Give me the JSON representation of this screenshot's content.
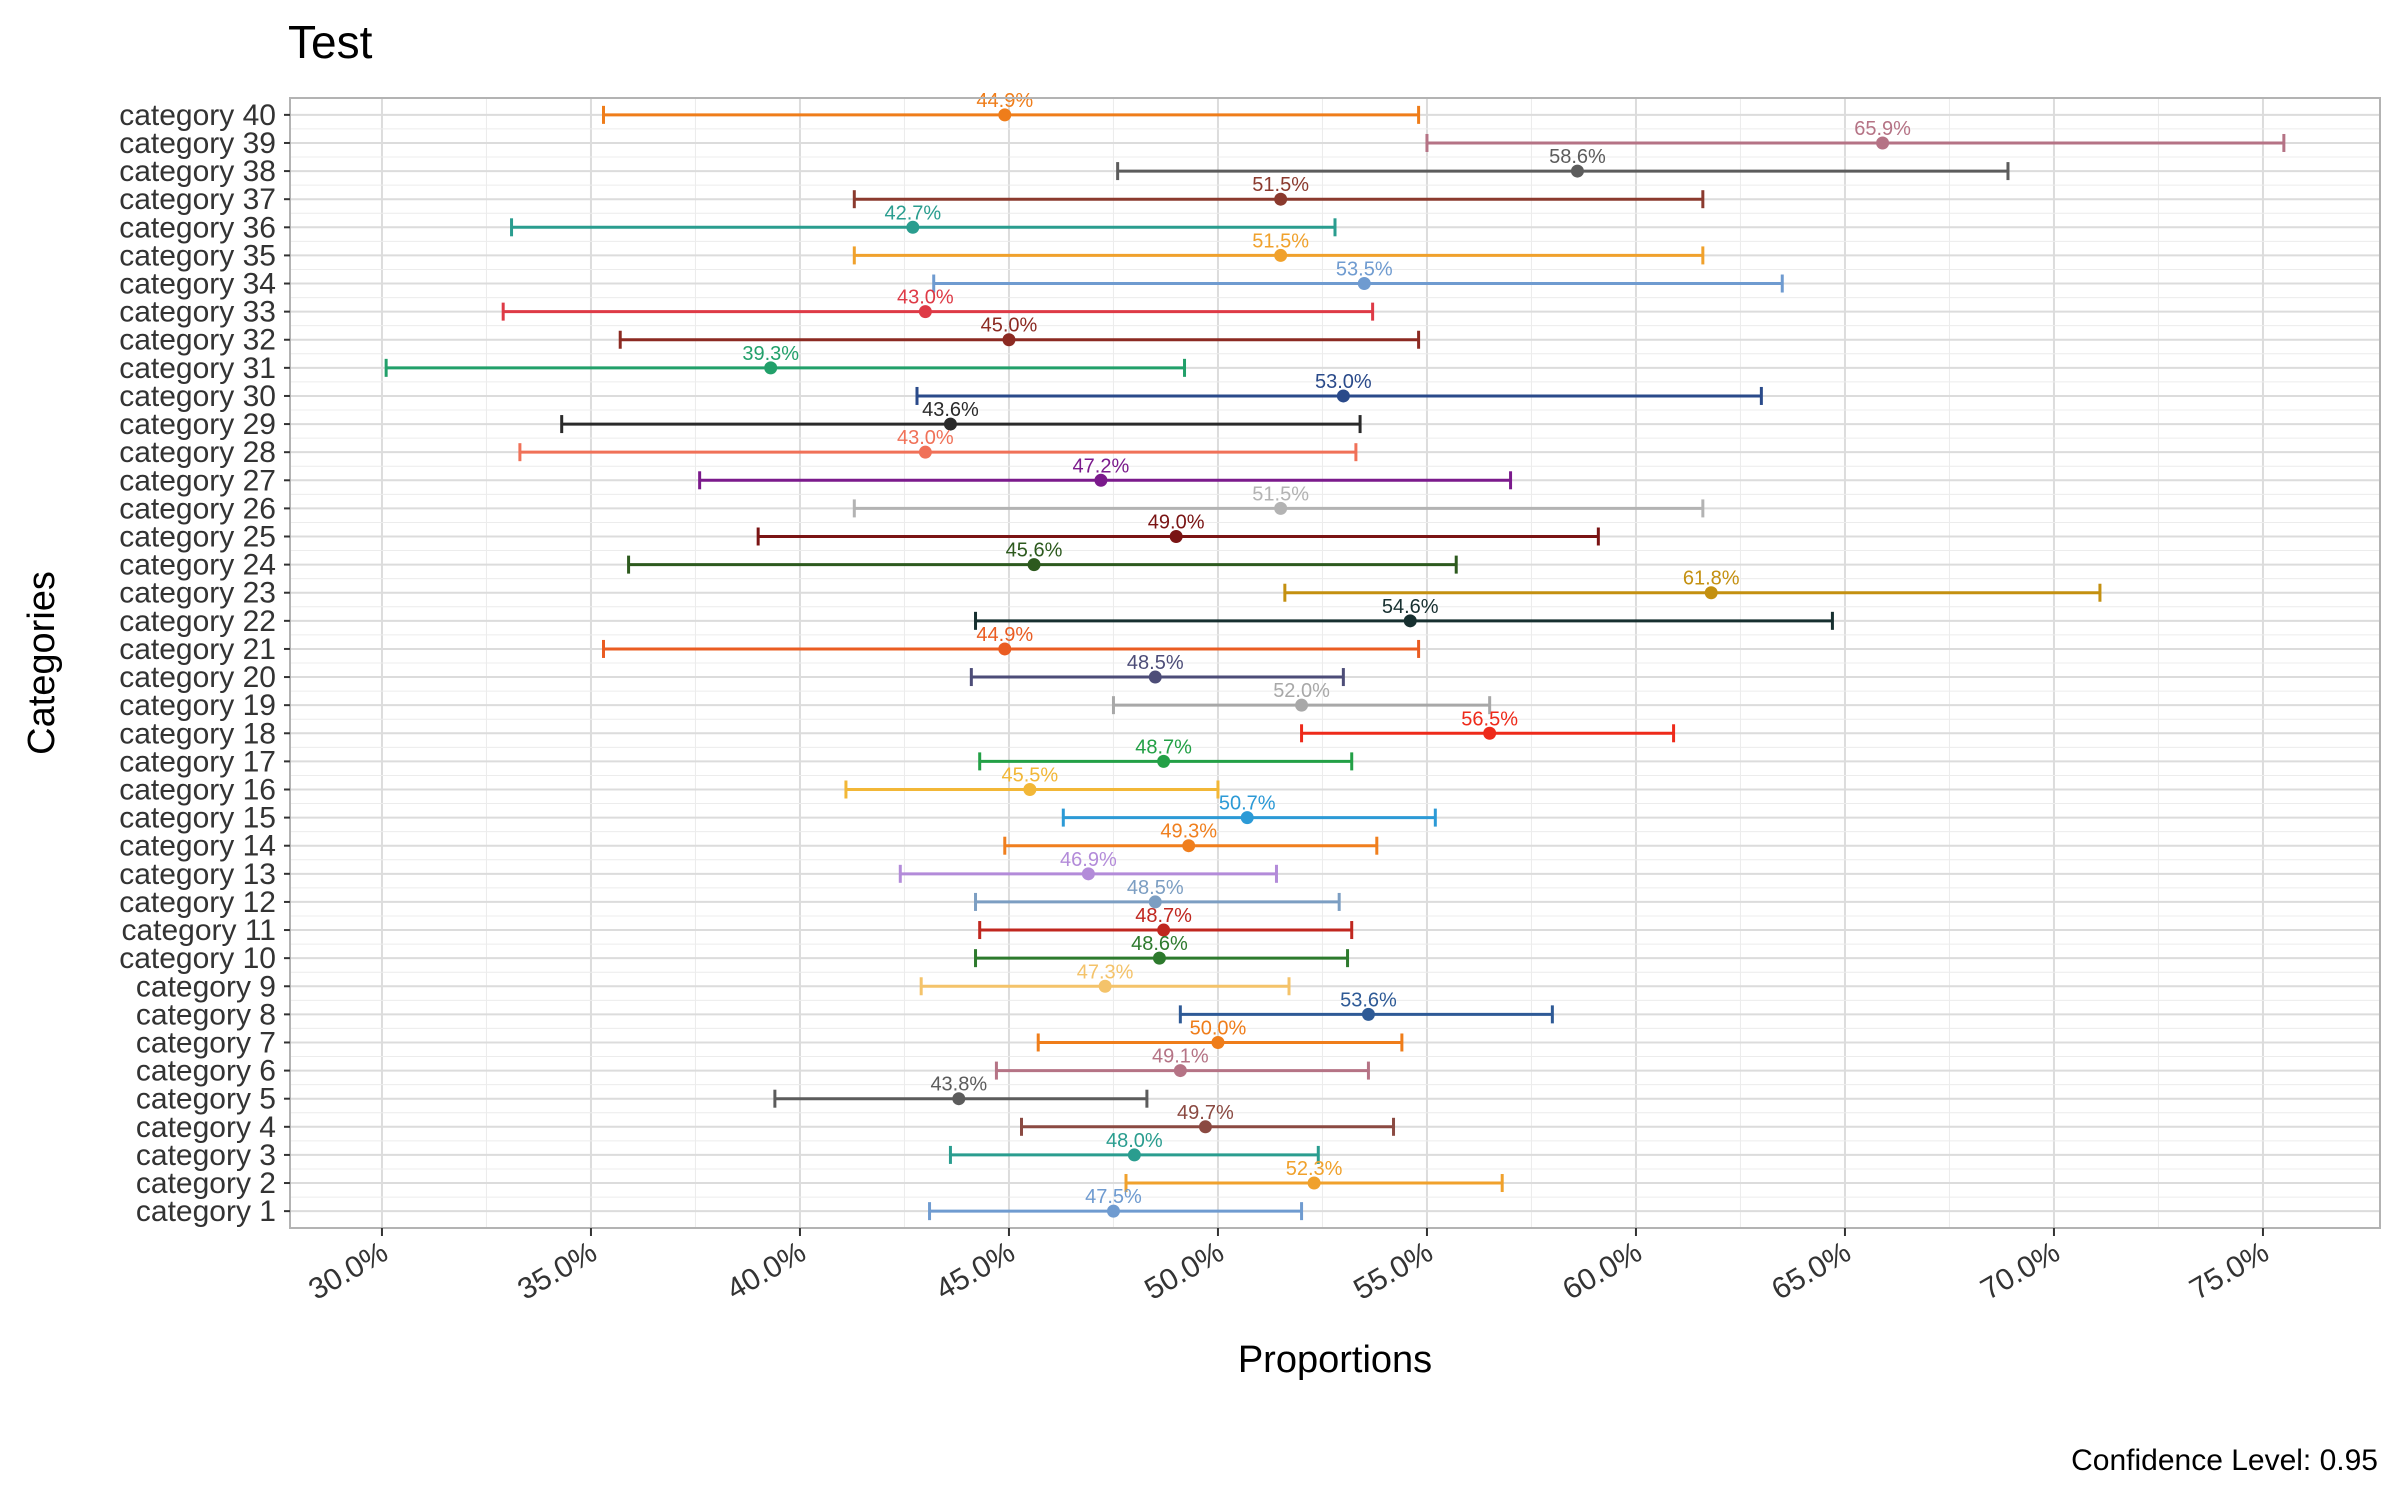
{
  "chart_data": {
    "type": "dot-interval",
    "title": "Test",
    "xlabel": "Proportions",
    "ylabel": "Categories",
    "caption": "Confidence Level: 0.95",
    "xlim": [
      0.278,
      0.778
    ],
    "x_ticks": [
      0.3,
      0.35,
      0.4,
      0.45,
      0.5,
      0.55,
      0.6,
      0.65,
      0.7,
      0.75
    ],
    "x_tick_labels": [
      "30.0%",
      "35.0%",
      "40.0%",
      "45.0%",
      "50.0%",
      "55.0%",
      "60.0%",
      "65.0%",
      "70.0%",
      "75.0%"
    ],
    "grid": true,
    "legend": "none",
    "points": [
      {
        "category": "category 1",
        "value": 0.475,
        "lower": 0.431,
        "upper": 0.52,
        "label": "47.5%",
        "color": "#6f9bd0"
      },
      {
        "category": "category 2",
        "value": 0.523,
        "lower": 0.478,
        "upper": 0.568,
        "label": "52.3%",
        "color": "#f0a12c"
      },
      {
        "category": "category 3",
        "value": 0.48,
        "lower": 0.436,
        "upper": 0.524,
        "label": "48.0%",
        "color": "#2a9d8f"
      },
      {
        "category": "category 4",
        "value": 0.497,
        "lower": 0.453,
        "upper": 0.542,
        "label": "49.7%",
        "color": "#8b4a42"
      },
      {
        "category": "category 5",
        "value": 0.438,
        "lower": 0.394,
        "upper": 0.483,
        "label": "43.8%",
        "color": "#5c5c5c"
      },
      {
        "category": "category 6",
        "value": 0.491,
        "lower": 0.447,
        "upper": 0.536,
        "label": "49.1%",
        "color": "#b57385"
      },
      {
        "category": "category 7",
        "value": 0.5,
        "lower": 0.457,
        "upper": 0.544,
        "label": "50.0%",
        "color": "#ef7d1a"
      },
      {
        "category": "category 8",
        "value": 0.536,
        "lower": 0.491,
        "upper": 0.58,
        "label": "53.6%",
        "color": "#2e5a96"
      },
      {
        "category": "category 9",
        "value": 0.473,
        "lower": 0.429,
        "upper": 0.517,
        "label": "47.3%",
        "color": "#f4c36a"
      },
      {
        "category": "category 10",
        "value": 0.486,
        "lower": 0.442,
        "upper": 0.531,
        "label": "48.6%",
        "color": "#2d7a2d"
      },
      {
        "category": "category 11",
        "value": 0.487,
        "lower": 0.443,
        "upper": 0.532,
        "label": "48.7%",
        "color": "#c0271f"
      },
      {
        "category": "category 12",
        "value": 0.485,
        "lower": 0.442,
        "upper": 0.529,
        "label": "48.5%",
        "color": "#7c9ec2"
      },
      {
        "category": "category 13",
        "value": 0.469,
        "lower": 0.424,
        "upper": 0.514,
        "label": "46.9%",
        "color": "#b38bd9"
      },
      {
        "category": "category 14",
        "value": 0.493,
        "lower": 0.449,
        "upper": 0.538,
        "label": "49.3%",
        "color": "#f07f1e"
      },
      {
        "category": "category 15",
        "value": 0.507,
        "lower": 0.463,
        "upper": 0.552,
        "label": "50.7%",
        "color": "#2c9ad6"
      },
      {
        "category": "category 16",
        "value": 0.455,
        "lower": 0.411,
        "upper": 0.5,
        "label": "45.5%",
        "color": "#f2b737"
      },
      {
        "category": "category 17",
        "value": 0.487,
        "lower": 0.443,
        "upper": 0.532,
        "label": "48.7%",
        "color": "#23a046"
      },
      {
        "category": "category 18",
        "value": 0.565,
        "lower": 0.52,
        "upper": 0.609,
        "label": "56.5%",
        "color": "#ee2a1a"
      },
      {
        "category": "category 19",
        "value": 0.52,
        "lower": 0.475,
        "upper": 0.565,
        "label": "52.0%",
        "color": "#a8a8a8"
      },
      {
        "category": "category 20",
        "value": 0.485,
        "lower": 0.441,
        "upper": 0.53,
        "label": "48.5%",
        "color": "#4d4d78"
      },
      {
        "category": "category 21",
        "value": 0.449,
        "lower": 0.353,
        "upper": 0.548,
        "label": "44.9%",
        "color": "#ea5c22"
      },
      {
        "category": "category 22",
        "value": 0.546,
        "lower": 0.442,
        "upper": 0.647,
        "label": "54.6%",
        "color": "#173030"
      },
      {
        "category": "category 23",
        "value": 0.618,
        "lower": 0.516,
        "upper": 0.711,
        "label": "61.8%",
        "color": "#c49010"
      },
      {
        "category": "category 24",
        "value": 0.456,
        "lower": 0.359,
        "upper": 0.557,
        "label": "45.6%",
        "color": "#2d5a1e"
      },
      {
        "category": "category 25",
        "value": 0.49,
        "lower": 0.39,
        "upper": 0.591,
        "label": "49.0%",
        "color": "#7a1414"
      },
      {
        "category": "category 26",
        "value": 0.515,
        "lower": 0.413,
        "upper": 0.616,
        "label": "51.5%",
        "color": "#b3b3b3"
      },
      {
        "category": "category 27",
        "value": 0.472,
        "lower": 0.376,
        "upper": 0.57,
        "label": "47.2%",
        "color": "#7b1a8c"
      },
      {
        "category": "category 28",
        "value": 0.43,
        "lower": 0.333,
        "upper": 0.533,
        "label": "43.0%",
        "color": "#f07158"
      },
      {
        "category": "category 29",
        "value": 0.436,
        "lower": 0.343,
        "upper": 0.534,
        "label": "43.6%",
        "color": "#2a2a2a"
      },
      {
        "category": "category 30",
        "value": 0.53,
        "lower": 0.428,
        "upper": 0.63,
        "label": "53.0%",
        "color": "#2a4a8a"
      },
      {
        "category": "category 31",
        "value": 0.393,
        "lower": 0.301,
        "upper": 0.492,
        "label": "39.3%",
        "color": "#22a06a"
      },
      {
        "category": "category 32",
        "value": 0.45,
        "lower": 0.357,
        "upper": 0.548,
        "label": "45.0%",
        "color": "#8c2a22"
      },
      {
        "category": "category 33",
        "value": 0.43,
        "lower": 0.329,
        "upper": 0.537,
        "label": "43.0%",
        "color": "#de3a46"
      },
      {
        "category": "category 34",
        "value": 0.535,
        "lower": 0.432,
        "upper": 0.635,
        "label": "53.5%",
        "color": "#6f9bd0"
      },
      {
        "category": "category 35",
        "value": 0.515,
        "lower": 0.413,
        "upper": 0.616,
        "label": "51.5%",
        "color": "#f0a12c"
      },
      {
        "category": "category 36",
        "value": 0.427,
        "lower": 0.331,
        "upper": 0.528,
        "label": "42.7%",
        "color": "#2a9d8f"
      },
      {
        "category": "category 37",
        "value": 0.515,
        "lower": 0.413,
        "upper": 0.616,
        "label": "51.5%",
        "color": "#8b3a2e"
      },
      {
        "category": "category 38",
        "value": 0.586,
        "lower": 0.476,
        "upper": 0.689,
        "label": "58.6%",
        "color": "#5c5c5c"
      },
      {
        "category": "category 39",
        "value": 0.659,
        "lower": 0.55,
        "upper": 0.755,
        "label": "65.9%",
        "color": "#b57385"
      },
      {
        "category": "category 40",
        "value": 0.449,
        "lower": 0.353,
        "upper": 0.548,
        "label": "44.9%",
        "color": "#ef7d1a"
      }
    ]
  }
}
